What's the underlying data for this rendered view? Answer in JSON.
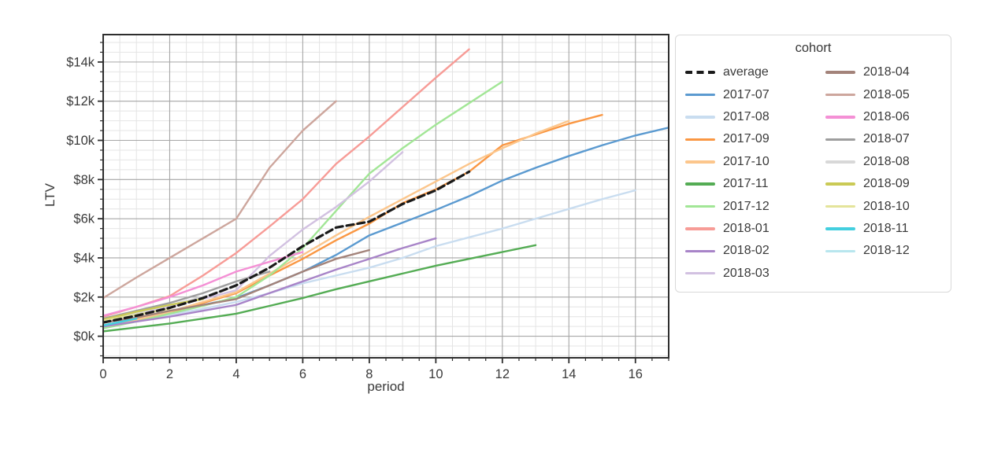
{
  "labels": {
    "x_axis": "period",
    "y_axis": "LTV",
    "legend_title": "cohort"
  },
  "chart_data": {
    "type": "line",
    "title": "",
    "xlabel": "period",
    "ylabel": "LTV",
    "xlim": [
      0,
      17
    ],
    "ylim": [
      -1.1,
      15.4
    ],
    "xticks": [
      0,
      2,
      4,
      6,
      8,
      10,
      12,
      14,
      16
    ],
    "ytick_values": [
      0,
      2,
      4,
      6,
      8,
      10,
      12,
      14
    ],
    "ytick_labels": [
      "$0k",
      "$2k",
      "$4k",
      "$6k",
      "$8k",
      "$10k",
      "$12k",
      "$14k"
    ],
    "minor_step": 0.5,
    "grid": true,
    "units": "thousands of dollars",
    "legend_title": "cohort",
    "legend_position": "right",
    "legend_col_break": 10,
    "axis_color": "#2e2e2e",
    "major_grid_color": "#a6a6a6",
    "minor_grid_color": "#e4e4e4",
    "series": [
      {
        "name": "average",
        "color": "#1a1a1a",
        "dashed": true,
        "values": [
          0.7,
          1.05,
          1.45,
          1.95,
          2.6,
          3.5,
          4.6,
          5.55,
          5.85,
          6.75,
          7.45,
          8.4
        ]
      },
      {
        "name": "2017-07",
        "color": "#5b9ad0",
        "dashed": false,
        "values": [
          0.55,
          0.9,
          1.25,
          1.6,
          1.95,
          2.6,
          3.3,
          4.15,
          5.15,
          5.8,
          6.45,
          7.15,
          7.95,
          8.6,
          9.2,
          9.75,
          10.25,
          10.65
        ]
      },
      {
        "name": "2017-08",
        "color": "#c9ddf0",
        "dashed": false,
        "values": [
          0.5,
          0.8,
          1.1,
          1.4,
          1.75,
          2.2,
          2.7,
          3.1,
          3.5,
          4.0,
          4.6,
          5.05,
          5.5,
          6.0,
          6.5,
          7.0,
          7.45
        ]
      },
      {
        "name": "2017-09",
        "color": "#fa9743",
        "dashed": false,
        "values": [
          0.45,
          0.8,
          1.2,
          1.7,
          2.2,
          3.1,
          3.95,
          4.9,
          5.75,
          6.8,
          7.5,
          8.4,
          9.75,
          10.3,
          10.85,
          11.3
        ]
      },
      {
        "name": "2017-10",
        "color": "#fcc68c",
        "dashed": false,
        "values": [
          0.5,
          0.85,
          1.25,
          1.75,
          2.25,
          3.2,
          4.15,
          5.15,
          6.1,
          7.0,
          7.9,
          8.8,
          9.6,
          10.35,
          11.0
        ]
      },
      {
        "name": "2017-11",
        "color": "#54ac54",
        "dashed": false,
        "values": [
          0.25,
          0.45,
          0.65,
          0.9,
          1.15,
          1.55,
          1.95,
          2.4,
          2.8,
          3.2,
          3.6,
          3.95,
          4.3,
          4.65
        ]
      },
      {
        "name": "2017-12",
        "color": "#a2e696",
        "dashed": false,
        "values": [
          0.4,
          0.75,
          1.15,
          1.55,
          2.0,
          3.1,
          4.5,
          6.4,
          8.3,
          9.6,
          10.8,
          11.9,
          13.0
        ]
      },
      {
        "name": "2018-01",
        "color": "#f79c97",
        "dashed": false,
        "values": [
          1.0,
          1.5,
          2.05,
          3.1,
          4.25,
          5.6,
          7.0,
          8.8,
          10.2,
          11.7,
          13.2,
          14.65
        ]
      },
      {
        "name": "2018-02",
        "color": "#a884c8",
        "dashed": false,
        "values": [
          0.5,
          0.75,
          1.0,
          1.3,
          1.6,
          2.2,
          2.8,
          3.4,
          3.95,
          4.5,
          5.0
        ]
      },
      {
        "name": "2018-03",
        "color": "#d2c1e1",
        "dashed": false,
        "values": [
          0.75,
          1.1,
          1.5,
          1.9,
          2.35,
          4.1,
          5.45,
          6.6,
          7.9,
          9.4
        ]
      },
      {
        "name": "2018-04",
        "color": "#a3837a",
        "dashed": false,
        "values": [
          0.7,
          0.95,
          1.3,
          1.6,
          1.9,
          2.6,
          3.3,
          3.95,
          4.4
        ]
      },
      {
        "name": "2018-05",
        "color": "#cda69d",
        "dashed": false,
        "values": [
          1.95,
          3.0,
          4.0,
          5.0,
          6.0,
          8.6,
          10.5,
          12.0
        ]
      },
      {
        "name": "2018-06",
        "color": "#f490d5",
        "dashed": false,
        "values": [
          1.05,
          1.5,
          2.0,
          2.6,
          3.3,
          3.8,
          4.3
        ]
      },
      {
        "name": "2018-07",
        "color": "#9e9e9e",
        "dashed": false,
        "values": [
          0.9,
          1.3,
          1.7,
          2.2,
          2.8,
          3.3
        ]
      },
      {
        "name": "2018-08",
        "color": "#d8d8d8",
        "dashed": false,
        "values": [
          0.85,
          1.2,
          1.6,
          2.0,
          2.55
        ]
      },
      {
        "name": "2018-09",
        "color": "#caca55",
        "dashed": false,
        "values": [
          0.85,
          1.25,
          1.6,
          1.9
        ]
      },
      {
        "name": "2018-10",
        "color": "#e4e49a",
        "dashed": false,
        "values": [
          0.8,
          1.1,
          1.4
        ]
      },
      {
        "name": "2018-11",
        "color": "#43cfdf",
        "dashed": false,
        "values": [
          0.55,
          0.9
        ]
      },
      {
        "name": "2018-12",
        "color": "#b8e6ee",
        "dashed": false,
        "values": [
          0.5
        ]
      }
    ]
  }
}
